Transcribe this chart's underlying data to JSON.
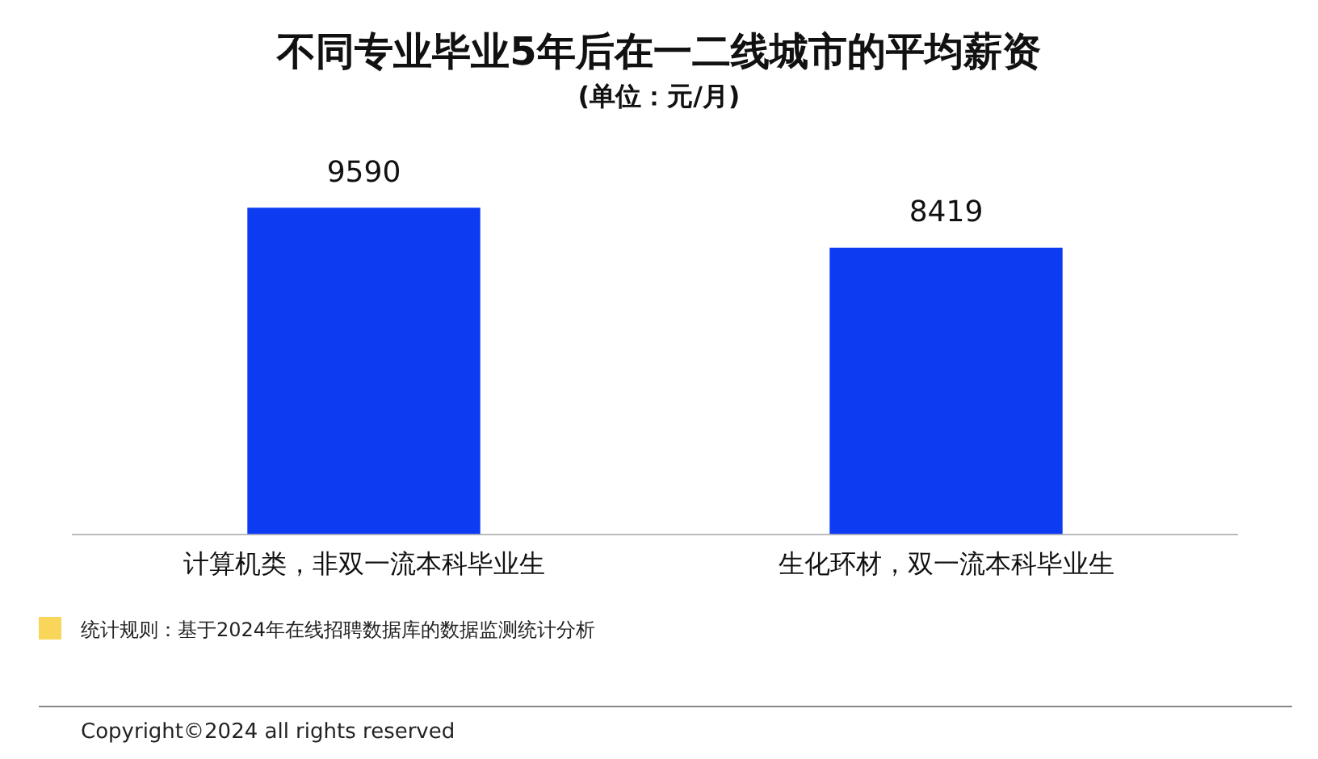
{
  "chart_data": {
    "type": "bar",
    "title": "不同专业毕业5年后在一二线城市的平均薪资",
    "subtitle": "(单位：元/月)",
    "categories": [
      "计算机类，非双一流本科毕业生",
      "生化环材，双一流本科毕业生"
    ],
    "values": [
      9590,
      8419
    ],
    "color": "#0c3bf2",
    "tick_labels": "x",
    "data_labels": true,
    "grid": false,
    "legend": false,
    "annotations": [
      "统计规则：基于2024年在线招聘数据库的数据监测统计分析",
      "Copyright©2024 all rights reserved"
    ]
  }
}
